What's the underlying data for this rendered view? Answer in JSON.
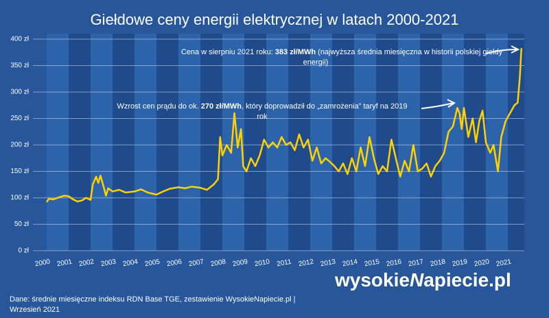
{
  "chart_data": {
    "type": "line",
    "title": "Giełdowe ceny energii elektrycznej w latach 2000-2021",
    "x": [
      2000.0,
      2000.1,
      2000.3,
      2000.5,
      2000.8,
      2001.0,
      2001.2,
      2001.4,
      2001.6,
      2001.8,
      2002.0,
      2002.1,
      2002.25,
      2002.35,
      2002.45,
      2002.6,
      2002.7,
      2002.8,
      2003.0,
      2003.3,
      2003.6,
      2004.0,
      2004.3,
      2004.6,
      2005.0,
      2005.3,
      2005.6,
      2006.0,
      2006.3,
      2006.6,
      2007.0,
      2007.3,
      2007.6,
      2007.8,
      2007.9,
      2008.0,
      2008.2,
      2008.4,
      2008.55,
      2008.7,
      2008.85,
      2008.95,
      2009.1,
      2009.3,
      2009.5,
      2009.7,
      2009.9,
      2010.1,
      2010.3,
      2010.5,
      2010.7,
      2010.9,
      2011.1,
      2011.3,
      2011.5,
      2011.7,
      2011.9,
      2012.1,
      2012.3,
      2012.5,
      2012.7,
      2012.9,
      2013.1,
      2013.3,
      2013.5,
      2013.7,
      2013.9,
      2014.1,
      2014.3,
      2014.5,
      2014.7,
      2014.9,
      2015.1,
      2015.3,
      2015.5,
      2015.7,
      2015.9,
      2016.1,
      2016.3,
      2016.5,
      2016.7,
      2016.9,
      2017.1,
      2017.3,
      2017.5,
      2017.7,
      2017.9,
      2018.1,
      2018.3,
      2018.5,
      2018.7,
      2018.8,
      2018.9,
      2019.0,
      2019.2,
      2019.4,
      2019.55,
      2019.7,
      2019.85,
      2020.0,
      2020.2,
      2020.35,
      2020.55,
      2020.7,
      2020.9,
      2021.1,
      2021.3,
      2021.45,
      2021.55,
      2021.62
    ],
    "series": [
      {
        "name": "RDN Base TGE",
        "color": "#ffd200",
        "values": [
          92,
          98,
          97,
          100,
          104,
          103,
          97,
          93,
          95,
          100,
          96,
          125,
          140,
          128,
          142,
          120,
          104,
          118,
          112,
          115,
          110,
          112,
          116,
          110,
          106,
          112,
          117,
          120,
          118,
          121,
          119,
          115,
          125,
          135,
          215,
          180,
          200,
          185,
          260,
          195,
          230,
          160,
          150,
          175,
          160,
          180,
          210,
          195,
          205,
          195,
          215,
          200,
          205,
          190,
          220,
          195,
          210,
          170,
          195,
          165,
          175,
          168,
          160,
          150,
          165,
          145,
          175,
          150,
          195,
          160,
          215,
          175,
          145,
          160,
          150,
          210,
          175,
          140,
          170,
          150,
          200,
          150,
          155,
          165,
          140,
          160,
          170,
          185,
          225,
          235,
          270,
          260,
          230,
          270,
          215,
          250,
          205,
          245,
          265,
          205,
          185,
          200,
          150,
          215,
          245,
          260,
          275,
          280,
          330,
          383
        ]
      }
    ],
    "xlim": [
      2000,
      2021.75
    ],
    "xticks": [
      2000,
      2001,
      2002,
      2003,
      2004,
      2005,
      2006,
      2007,
      2008,
      2009,
      2010,
      2011,
      2012,
      2013,
      2014,
      2015,
      2016,
      2017,
      2018,
      2019,
      2020,
      2021
    ],
    "ylim": [
      0,
      400
    ],
    "yticks": [
      {
        "value": 0,
        "label": "0 zł"
      },
      {
        "value": 50,
        "label": "50 zł"
      },
      {
        "value": 100,
        "label": "100 zł"
      },
      {
        "value": 150,
        "label": "150 zł"
      },
      {
        "value": 200,
        "label": "200 zł"
      },
      {
        "value": 250,
        "label": "250 zł"
      },
      {
        "value": 300,
        "label": "300 zł"
      },
      {
        "value": 350,
        "label": "350 zł"
      },
      {
        "value": 400,
        "label": "400 zł"
      }
    ],
    "grid": true,
    "annotations": [
      {
        "parts": [
          "Cena w sierpniu 2021 roku: ",
          "383 zł/MWh",
          " (najwyższa średnia miesięczna w historii polskiej giełdy"
        ],
        "line2": "energii)"
      },
      {
        "parts": [
          "Wzrost cen prądu do ok. ",
          "270 zł/MWh",
          ", który doprowadził do „zamrożenia” taryf na 2019"
        ],
        "line2": "rok"
      }
    ],
    "source": "Dane: średnie miesięczne indeksu RDN Base TGE, zestawienie WysokieNapiecie.pl   |",
    "date": "Wrzesień 2021",
    "logo": [
      "wysokie",
      "N",
      "apiecie.pl"
    ]
  }
}
